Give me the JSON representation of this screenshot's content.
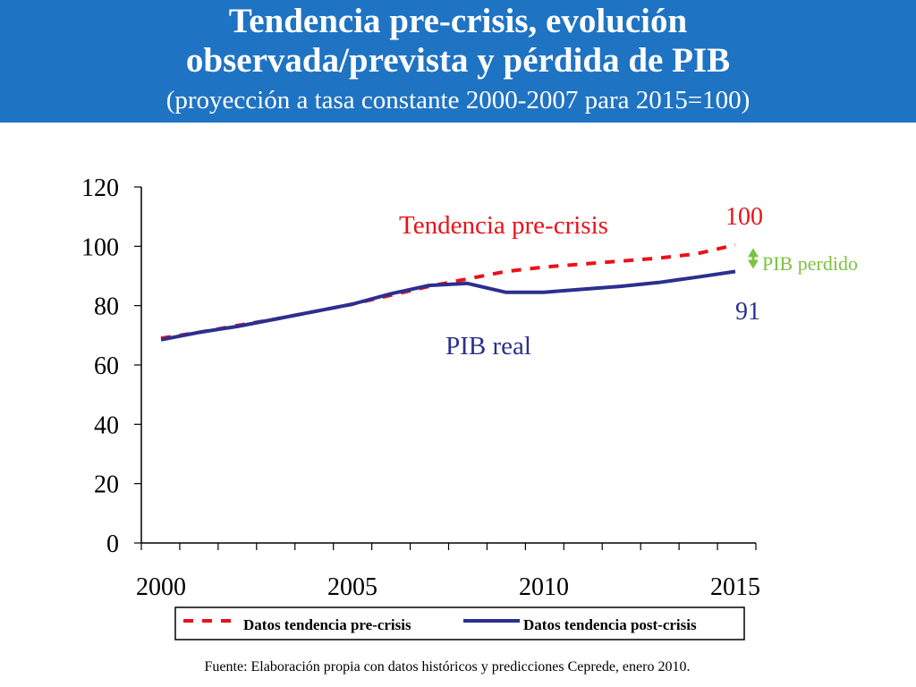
{
  "header": {
    "title_line1": "Tendencia pre-crisis, evolución",
    "title_line2": "observada/prevista y pérdida de PIB",
    "subtitle": "(proyección a tasa constante 2000-2007 para 2015=100)",
    "background_color": "#1f73c3"
  },
  "chart_data": {
    "type": "line",
    "x": [
      2000,
      2001,
      2002,
      2003,
      2004,
      2005,
      2006,
      2007,
      2008,
      2009,
      2010,
      2011,
      2012,
      2013,
      2014,
      2015
    ],
    "series": [
      {
        "name": "Datos tendencia pre-crisis",
        "style": "dashed",
        "color": "#e8131a",
        "values": [
          69,
          71,
          73.3,
          75.5,
          78,
          80.5,
          83.5,
          86.5,
          89,
          91.5,
          93,
          94,
          95,
          96,
          97.5,
          100.5
        ]
      },
      {
        "name": "Datos tendencia post-crisis",
        "style": "solid",
        "color": "#2b2f8f",
        "values": [
          68.5,
          71,
          73,
          75.5,
          78,
          80.5,
          84,
          86.8,
          87.5,
          84.5,
          84.5,
          85.5,
          86.5,
          87.8,
          89.6,
          91.5
        ]
      }
    ],
    "ylim": [
      0,
      120
    ],
    "xlim": [
      2000,
      2015
    ],
    "yticks": [
      0,
      20,
      40,
      60,
      80,
      100,
      120
    ],
    "xtick_labels": [
      2000,
      2005,
      2010,
      2015
    ],
    "grid": false,
    "legend_placement": "bottom",
    "annotations": {
      "pre_crisis_label": "Tendencia pre-crisis",
      "real_label": "PIB real",
      "end_pre_value": "100",
      "end_post_value": "91",
      "gap_label": "PIB perdido",
      "gap_color": "#7dc242"
    },
    "colors": {
      "pre": "#e8131a",
      "post": "#2b2f8f"
    }
  },
  "footer": {
    "source": "Fuente: Elaboración propia con datos históricos y predicciones Ceprede, enero 2010."
  }
}
